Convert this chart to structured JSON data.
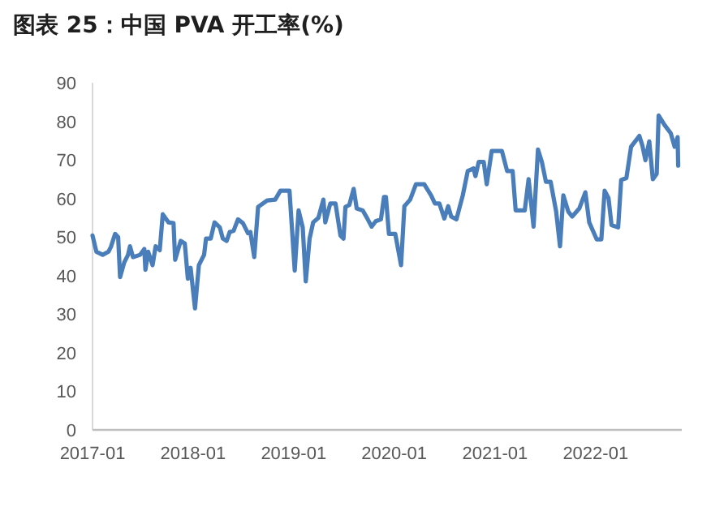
{
  "chart_data": {
    "type": "line",
    "title": "图表 25：中国 PVA 开工率(%)",
    "xlim": [
      "2017-01-01",
      "2022-11-10"
    ],
    "xticks": [
      "2017-01",
      "2018-01",
      "2019-01",
      "2020-01",
      "2021-01",
      "2022-01"
    ],
    "ylim": [
      0,
      90
    ],
    "yticks": [
      0,
      10,
      20,
      30,
      40,
      50,
      60,
      70,
      80,
      90
    ],
    "line_style": "solid",
    "series": [
      {
        "color": "#4a7ebb",
        "x": [
          "2017-01-01",
          "2017-01-15",
          "2017-02-07",
          "2017-02-28",
          "2017-03-09",
          "2017-03-24",
          "2017-04-04",
          "2017-04-11",
          "2017-04-26",
          "2017-05-10",
          "2017-05-17",
          "2017-05-28",
          "2017-06-23",
          "2017-07-08",
          "2017-07-12",
          "2017-07-22",
          "2017-08-07",
          "2017-08-18",
          "2017-09-02",
          "2017-09-13",
          "2017-10-04",
          "2017-10-22",
          "2017-10-28",
          "2017-11-17",
          "2017-12-02",
          "2017-12-13",
          "2017-12-23",
          "2018-01-08",
          "2018-01-22",
          "2018-02-10",
          "2018-02-17",
          "2018-03-06",
          "2018-03-20",
          "2018-04-08",
          "2018-04-19",
          "2018-05-03",
          "2018-05-14",
          "2018-05-28",
          "2018-06-13",
          "2018-07-01",
          "2018-07-19",
          "2018-07-28",
          "2018-08-11",
          "2018-08-25",
          "2018-09-27",
          "2018-10-26",
          "2018-11-14",
          "2018-12-17",
          "2019-01-05",
          "2019-01-19",
          "2019-02-03",
          "2019-02-14",
          "2019-02-28",
          "2019-03-13",
          "2019-04-01",
          "2019-04-19",
          "2019-04-26",
          "2019-05-14",
          "2019-06-02",
          "2019-06-20",
          "2019-07-01",
          "2019-07-08",
          "2019-07-22",
          "2019-08-07",
          "2019-08-18",
          "2019-09-09",
          "2019-09-27",
          "2019-10-11",
          "2019-10-26",
          "2019-11-14",
          "2019-11-25",
          "2019-12-02",
          "2019-12-13",
          "2020-01-05",
          "2020-01-26",
          "2020-02-07",
          "2020-02-28",
          "2020-03-20",
          "2020-04-19",
          "2020-05-14",
          "2020-05-28",
          "2020-06-13",
          "2020-07-01",
          "2020-07-15",
          "2020-07-26",
          "2020-08-14",
          "2020-09-06",
          "2020-09-24",
          "2020-10-15",
          "2020-10-22",
          "2020-11-03",
          "2020-11-21",
          "2020-12-02",
          "2020-12-20",
          "2021-01-26",
          "2021-02-14",
          "2021-03-06",
          "2021-03-17",
          "2021-04-19",
          "2021-05-03",
          "2021-05-21",
          "2021-06-06",
          "2021-06-20",
          "2021-07-05",
          "2021-07-22",
          "2021-08-11",
          "2021-08-25",
          "2021-09-06",
          "2021-09-24",
          "2021-10-08",
          "2021-11-03",
          "2021-11-25",
          "2021-12-09",
          "2022-01-05",
          "2022-01-22",
          "2022-02-03",
          "2022-02-17",
          "2022-02-28",
          "2022-03-24",
          "2022-04-04",
          "2022-04-23",
          "2022-05-10",
          "2022-06-09",
          "2022-06-20",
          "2022-07-01",
          "2022-07-15",
          "2022-07-28",
          "2022-08-11",
          "2022-08-18",
          "2022-09-09",
          "2022-10-01",
          "2022-10-15",
          "2022-10-26",
          "2022-10-28"
        ],
        "values": [
          50.4,
          46.2,
          45.4,
          46.2,
          47.5,
          50.8,
          50.0,
          39.6,
          43.4,
          45.4,
          47.6,
          44.8,
          45.4,
          46.9,
          41.5,
          46.2,
          42.7,
          47.6,
          46.6,
          55.9,
          53.8,
          53.6,
          44.1,
          49.0,
          48.3,
          39.2,
          42.0,
          31.5,
          42.7,
          45.4,
          49.6,
          49.6,
          53.8,
          52.5,
          49.6,
          49.0,
          51.3,
          51.6,
          54.6,
          53.6,
          51.0,
          51.3,
          44.8,
          57.8,
          59.5,
          59.7,
          62.0,
          62.0,
          41.3,
          56.9,
          52.5,
          38.5,
          49.6,
          53.8,
          55.0,
          59.7,
          53.8,
          58.7,
          58.7,
          50.4,
          49.6,
          57.8,
          58.3,
          62.5,
          57.4,
          56.9,
          54.6,
          52.7,
          54.1,
          54.6,
          60.4,
          60.4,
          50.8,
          50.8,
          42.7,
          58.0,
          59.7,
          63.7,
          63.7,
          60.8,
          58.7,
          58.7,
          54.8,
          58.0,
          55.3,
          54.6,
          60.8,
          67.1,
          67.8,
          65.8,
          69.5,
          69.5,
          63.7,
          72.3,
          72.3,
          67.1,
          67.1,
          56.9,
          56.9,
          65.0,
          52.7,
          72.7,
          69.5,
          64.3,
          64.3,
          56.6,
          47.6,
          60.8,
          56.6,
          55.3,
          57.4,
          61.6,
          53.8,
          49.4,
          49.4,
          62.0,
          60.1,
          53.1,
          52.5,
          64.8,
          65.3,
          73.4,
          76.2,
          73.7,
          69.9,
          74.8,
          65.0,
          66.4,
          81.5,
          79.0,
          76.9,
          73.4,
          75.9,
          68.5
        ]
      }
    ]
  }
}
